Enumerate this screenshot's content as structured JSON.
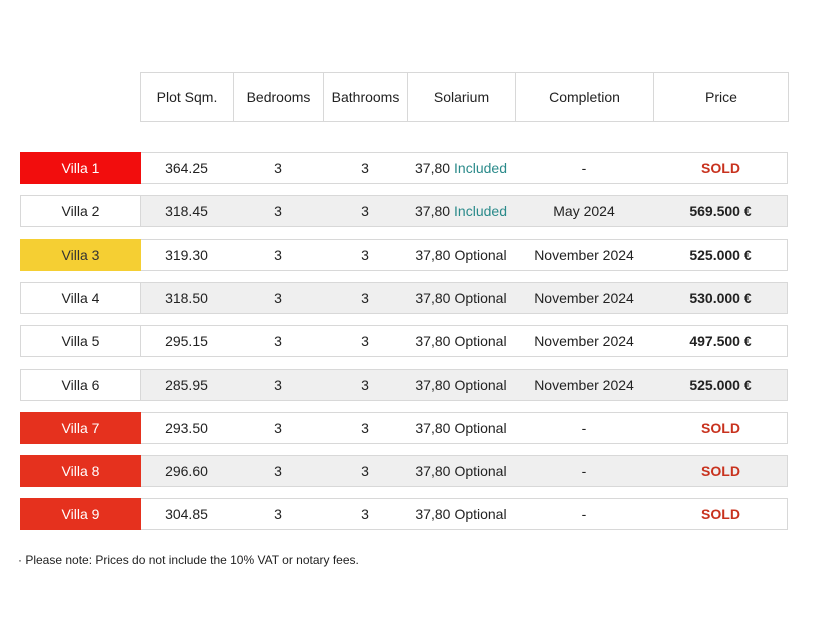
{
  "table": {
    "header": [
      "Plot Sqm.",
      "Bedrooms",
      "Bathrooms",
      "Solarium",
      "Completion",
      "Price"
    ],
    "rows": [
      {
        "villa": "Villa 1",
        "plot": "364.25",
        "bedrooms": "3",
        "bathrooms": "3",
        "solarium_size": "37,80",
        "solarium_option": "Included",
        "completion": "-",
        "price": "SOLD"
      },
      {
        "villa": "Villa 2",
        "plot": "318.45",
        "bedrooms": "3",
        "bathrooms": "3",
        "solarium_size": "37,80",
        "solarium_option": "Included",
        "completion": "May 2024",
        "price": "569.500 €"
      },
      {
        "villa": "Villa 3",
        "plot": "319.30",
        "bedrooms": "3",
        "bathrooms": "3",
        "solarium_size": "37,80",
        "solarium_option": "Optional",
        "completion": "November 2024",
        "price": "525.000 €"
      },
      {
        "villa": "Villa 4",
        "plot": "318.50",
        "bedrooms": "3",
        "bathrooms": "3",
        "solarium_size": "37,80",
        "solarium_option": "Optional",
        "completion": "November 2024",
        "price": "530.000 €"
      },
      {
        "villa": "Villa 5",
        "plot": "295.15",
        "bedrooms": "3",
        "bathrooms": "3",
        "solarium_size": "37,80",
        "solarium_option": "Optional",
        "completion": "November 2024",
        "price": "497.500 €"
      },
      {
        "villa": "Villa 6",
        "plot": "285.95",
        "bedrooms": "3",
        "bathrooms": "3",
        "solarium_size": "37,80",
        "solarium_option": "Optional",
        "completion": "November 2024",
        "price": "525.000 €"
      },
      {
        "villa": "Villa 7",
        "plot": "293.50",
        "bedrooms": "3",
        "bathrooms": "3",
        "solarium_size": "37,80",
        "solarium_option": "Optional",
        "completion": "-",
        "price": "SOLD"
      },
      {
        "villa": "Villa 8",
        "plot": "296.60",
        "bedrooms": "3",
        "bathrooms": "3",
        "solarium_size": "37,80",
        "solarium_option": "Optional",
        "completion": "-",
        "price": "SOLD"
      },
      {
        "villa": "Villa 9",
        "plot": "304.85",
        "bedrooms": "3",
        "bathrooms": "3",
        "solarium_size": "37,80",
        "solarium_option": "Optional",
        "completion": "-",
        "price": "SOLD"
      }
    ]
  },
  "note": "· Please note: Prices do not include the 10% VAT or notary fees."
}
